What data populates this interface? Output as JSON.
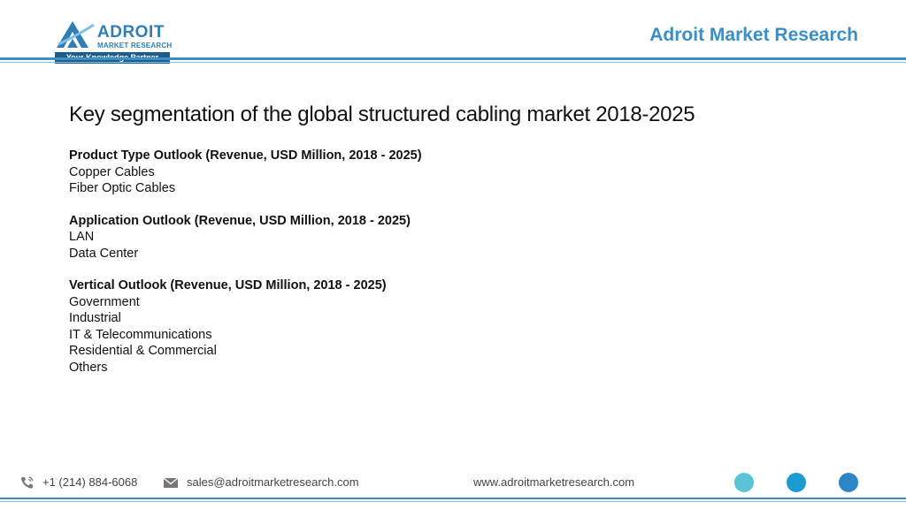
{
  "header": {
    "logo": {
      "name": "ADROIT",
      "sub": "MARKET RESEARCH",
      "tagline": "Your Knowledge Partner"
    },
    "brand_title": "Adroit Market Research",
    "accent_color": "#3a8fc7"
  },
  "main": {
    "title": "Key segmentation of the global structured cabling market 2018-2025",
    "segments": [
      {
        "heading": "Product Type Outlook (Revenue, USD Million, 2018 - 2025)",
        "items": [
          "Copper Cables",
          "Fiber Optic Cables"
        ]
      },
      {
        "heading": "Application Outlook (Revenue, USD Million, 2018 - 2025)",
        "items": [
          "LAN",
          "Data Center"
        ]
      },
      {
        "heading": "Vertical Outlook (Revenue, USD Million, 2018 - 2025)",
        "items": [
          "Government",
          "Industrial",
          "IT & Telecommunications",
          "Residential & Commercial",
          "Others"
        ]
      }
    ]
  },
  "footer": {
    "phone": "+1 (214) 884-6068",
    "email": "sales@adroitmarketresearch.com",
    "website": "www.adroitmarketresearch.com",
    "phone_icon": "phone-icon",
    "email_icon": "envelope-icon",
    "dot_colors": [
      "#5bc3d6",
      "#1a9cd1",
      "#2b86c6"
    ]
  }
}
